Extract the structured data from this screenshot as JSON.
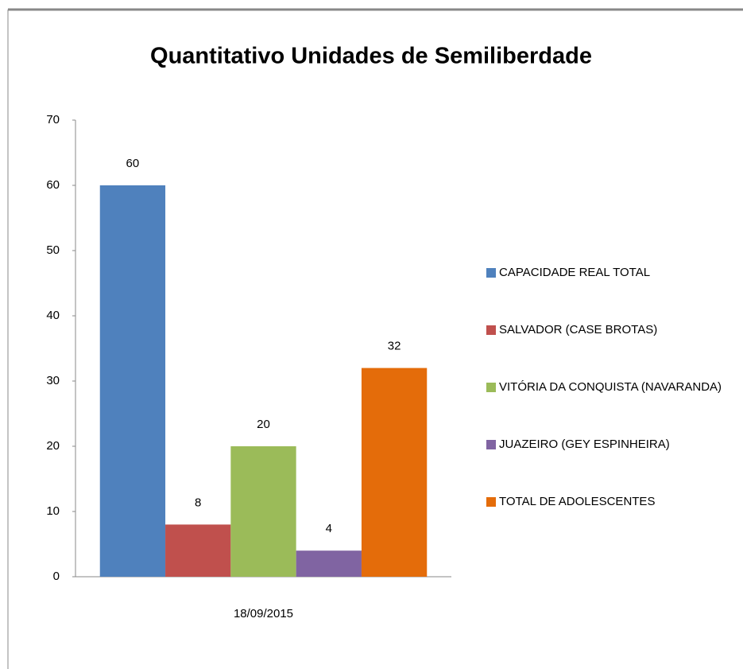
{
  "chart_data": {
    "type": "bar",
    "title": "Quantitativo Unidades de Semiliberdade",
    "categories": [
      "18/09/2015"
    ],
    "series": [
      {
        "name": "CAPACIDADE REAL TOTAL",
        "color": "#4f81bd",
        "values": [
          60
        ]
      },
      {
        "name": "SALVADOR (CASE BROTAS)",
        "color": "#c0504d",
        "values": [
          8
        ]
      },
      {
        "name": "VITÓRIA DA CONQUISTA (NAVARANDA)",
        "color": "#9bbb59",
        "values": [
          20
        ]
      },
      {
        "name": "JUAZEIRO (GEY ESPINHEIRA)",
        "color": "#8064a2",
        "values": [
          4
        ]
      },
      {
        "name": "TOTAL DE ADOLESCENTES",
        "color": "#e46c0a",
        "values": [
          32
        ]
      }
    ],
    "ylim": [
      0,
      70
    ],
    "yticks": [
      0,
      10,
      20,
      30,
      40,
      50,
      60,
      70
    ],
    "grid": false,
    "legend": "right",
    "data_labels": true
  }
}
